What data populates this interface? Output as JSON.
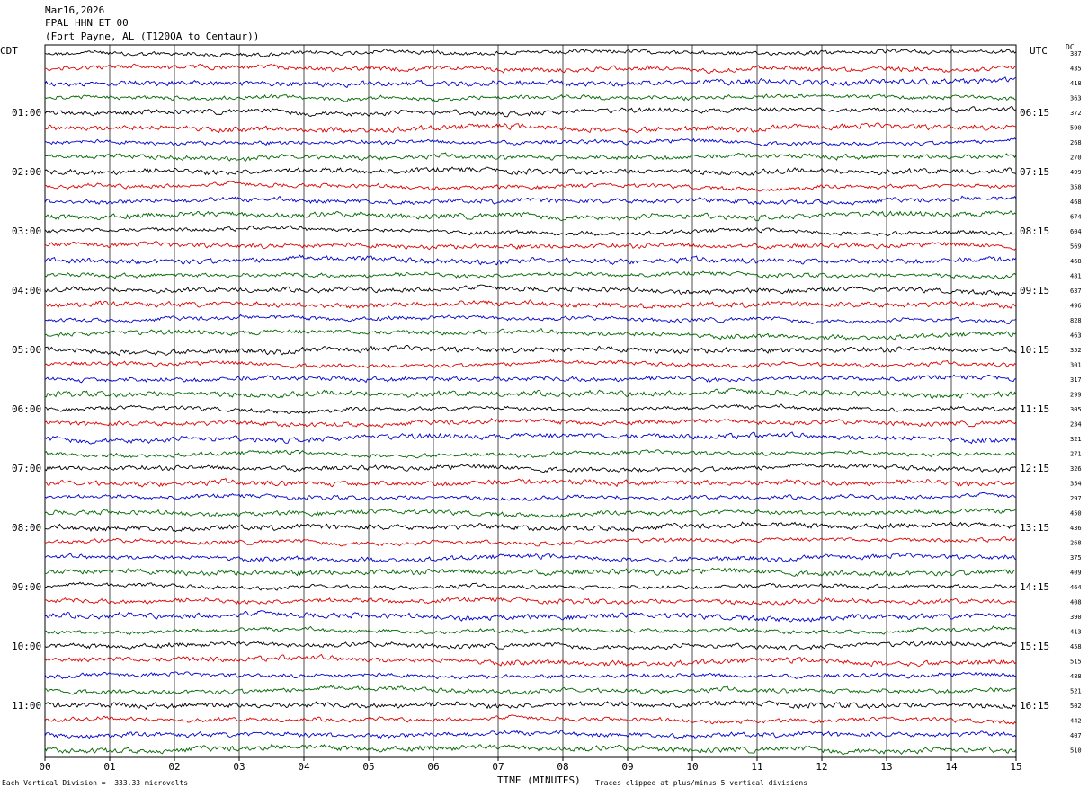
{
  "header": {
    "date": "Mar16,2026",
    "station": "FPAL HHN ET 00",
    "location": "(Fort Payne, AL (T120QA to Centaur))"
  },
  "corners": {
    "left": "CDT",
    "right": "UTC",
    "dc": "DC"
  },
  "chart_data": {
    "type": "line",
    "title": "",
    "xlabel": "TIME (MINUTES)",
    "x_ticks": [
      "00",
      "01",
      "02",
      "03",
      "04",
      "05",
      "06",
      "07",
      "08",
      "09",
      "10",
      "11",
      "12",
      "13",
      "14",
      "15"
    ],
    "xlim": [
      0,
      15
    ],
    "rows": 48,
    "row_colors": [
      "#000000",
      "#dd0000",
      "#0000cc",
      "#006600"
    ],
    "left_time_labels": [
      "01:00",
      "02:00",
      "03:00",
      "04:00",
      "05:00",
      "06:00",
      "07:00",
      "08:00",
      "09:00",
      "10:00",
      "11:00"
    ],
    "right_time_labels": [
      "06:15",
      "07:15",
      "08:15",
      "09:15",
      "10:15",
      "11:15",
      "12:15",
      "13:15",
      "14:15",
      "15:15",
      "16:15"
    ],
    "dc_offsets": [
      387,
      435,
      418,
      363,
      372,
      590,
      268,
      270,
      499,
      358,
      468,
      674,
      604,
      569,
      468,
      481,
      637,
      496,
      828,
      463,
      352,
      301,
      317,
      299,
      305,
      234,
      321,
      271,
      326,
      354,
      297,
      450,
      436,
      268,
      375,
      409,
      464,
      408,
      390,
      413,
      458,
      515,
      488,
      521,
      502,
      442,
      407,
      510
    ]
  },
  "footer": {
    "scale": "Each Vertical Division =  333.33 microvolts",
    "clip": "Traces clipped at plus/minus 5 vertical divisions"
  }
}
